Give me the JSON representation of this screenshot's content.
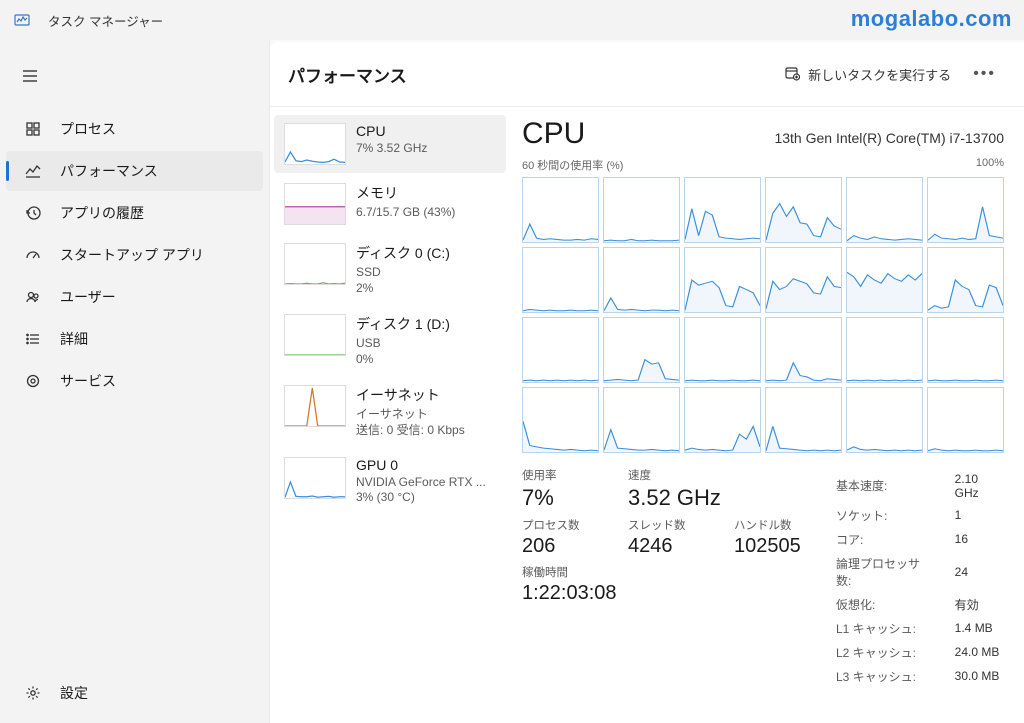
{
  "app": {
    "title": "タスク マネージャー",
    "watermark": "mogalabo.com"
  },
  "nav": {
    "items": [
      {
        "id": "processes",
        "label": "プロセス"
      },
      {
        "id": "performance",
        "label": "パフォーマンス"
      },
      {
        "id": "history",
        "label": "アプリの履歴"
      },
      {
        "id": "startup",
        "label": "スタートアップ アプリ"
      },
      {
        "id": "users",
        "label": "ユーザー"
      },
      {
        "id": "details",
        "label": "詳細"
      },
      {
        "id": "services",
        "label": "サービス"
      }
    ],
    "selected": "performance",
    "settings_label": "設定"
  },
  "header": {
    "page_title": "パフォーマンス",
    "new_task_label": "新しいタスクを実行する"
  },
  "resources": {
    "selected": 0,
    "items": [
      {
        "name": "CPU",
        "sub": "7%  3.52 GHz",
        "color": "#3a8fd9",
        "spark": [
          5,
          30,
          8,
          6,
          10,
          7,
          5,
          4,
          6,
          12,
          5,
          4
        ]
      },
      {
        "name": "メモリ",
        "sub": "6.7/15.7 GB (43%)",
        "color": "#b44ca0",
        "spark": [
          43,
          43,
          43,
          43,
          43,
          43,
          43,
          43,
          43,
          43,
          43,
          43
        ],
        "fill": true
      },
      {
        "name": "ディスク 0 (C:)",
        "sub": "SSD\n2%",
        "color": "#6bb35f",
        "spark": [
          0,
          1,
          0,
          0,
          2,
          0,
          0,
          3,
          0,
          1,
          0,
          2
        ]
      },
      {
        "name": "ディスク 1 (D:)",
        "sub": "USB\n0%",
        "color": "#6bb35f",
        "spark": [
          0,
          0,
          0,
          0,
          0,
          0,
          0,
          0,
          0,
          0,
          0,
          0
        ]
      },
      {
        "name": "イーサネット",
        "sub": "イーサネット\n送信: 0  受信: 0 Kbps",
        "color": "#d07a2a",
        "spark": [
          0,
          0,
          0,
          0,
          0,
          95,
          0,
          0,
          0,
          0,
          0,
          0
        ]
      },
      {
        "name": "GPU 0",
        "sub": "NVIDIA GeForce RTX ...\n3%  (30 °C)",
        "color": "#3a8fd9",
        "spark": [
          2,
          40,
          4,
          3,
          3,
          5,
          2,
          3,
          4,
          2,
          3,
          3
        ]
      }
    ]
  },
  "detail": {
    "title": "CPU",
    "cpu_name": "13th Gen Intel(R) Core(TM) i7-13700",
    "chart_left_label": "60 秒間の使用率 (%)",
    "chart_right_label": "100%",
    "core_color": "#3a8fd9",
    "cores": [
      [
        3,
        28,
        6,
        4,
        5,
        4,
        3,
        3,
        4,
        3,
        5,
        4
      ],
      [
        2,
        3,
        2,
        2,
        4,
        2,
        2,
        3,
        2,
        2,
        2,
        3
      ],
      [
        4,
        52,
        10,
        48,
        42,
        8,
        6,
        5,
        4,
        5,
        6,
        5
      ],
      [
        3,
        45,
        60,
        40,
        55,
        30,
        28,
        10,
        8,
        38,
        25,
        20
      ],
      [
        2,
        10,
        6,
        4,
        8,
        5,
        4,
        3,
        4,
        5,
        4,
        3
      ],
      [
        3,
        12,
        6,
        5,
        4,
        6,
        4,
        5,
        55,
        10,
        8,
        6
      ],
      [
        2,
        4,
        3,
        2,
        3,
        2,
        2,
        3,
        2,
        2,
        3,
        2
      ],
      [
        2,
        22,
        4,
        3,
        4,
        3,
        2,
        3,
        3,
        2,
        3,
        2
      ],
      [
        3,
        50,
        42,
        45,
        48,
        38,
        10,
        8,
        40,
        35,
        30,
        10
      ],
      [
        5,
        48,
        35,
        40,
        52,
        48,
        44,
        30,
        28,
        55,
        40,
        38
      ],
      [
        62,
        55,
        40,
        58,
        50,
        45,
        60,
        52,
        48,
        58,
        50,
        60
      ],
      [
        3,
        10,
        6,
        8,
        50,
        40,
        35,
        10,
        8,
        42,
        38,
        10
      ],
      [
        2,
        3,
        2,
        3,
        2,
        3,
        2,
        3,
        2,
        3,
        2,
        3
      ],
      [
        2,
        3,
        4,
        3,
        2,
        3,
        35,
        28,
        30,
        5,
        4,
        3
      ],
      [
        2,
        3,
        2,
        2,
        3,
        2,
        2,
        3,
        2,
        2,
        3,
        2
      ],
      [
        2,
        3,
        2,
        3,
        30,
        10,
        8,
        3,
        2,
        5,
        4,
        3
      ],
      [
        2,
        3,
        2,
        3,
        2,
        3,
        2,
        3,
        2,
        3,
        2,
        3
      ],
      [
        2,
        3,
        2,
        2,
        3,
        2,
        2,
        3,
        2,
        2,
        3,
        2
      ],
      [
        48,
        10,
        8,
        6,
        5,
        4,
        3,
        4,
        3,
        2,
        3,
        2
      ],
      [
        3,
        35,
        6,
        5,
        4,
        3,
        3,
        4,
        3,
        2,
        3,
        2
      ],
      [
        3,
        6,
        4,
        3,
        4,
        3,
        2,
        3,
        28,
        20,
        40,
        8
      ],
      [
        2,
        40,
        6,
        5,
        4,
        3,
        2,
        3,
        2,
        3,
        2,
        3
      ],
      [
        3,
        8,
        4,
        3,
        4,
        3,
        2,
        3,
        2,
        3,
        2,
        3
      ],
      [
        2,
        5,
        3,
        2,
        3,
        2,
        2,
        3,
        2,
        2,
        3,
        2
      ]
    ],
    "stats": {
      "usage_label": "使用率",
      "usage_value": "7%",
      "speed_label": "速度",
      "speed_value": "3.52 GHz",
      "proc_label": "プロセス数",
      "proc_value": "206",
      "thread_label": "スレッド数",
      "thread_value": "4246",
      "handle_label": "ハンドル数",
      "handle_value": "102505",
      "uptime_label": "稼働時間",
      "uptime_value": "1:22:03:08"
    },
    "specs": [
      {
        "k": "基本速度:",
        "v": "2.10 GHz"
      },
      {
        "k": "ソケット:",
        "v": "1"
      },
      {
        "k": "コア:",
        "v": "16"
      },
      {
        "k": "論理プロセッサ数:",
        "v": "24"
      },
      {
        "k": "仮想化:",
        "v": "有効"
      },
      {
        "k": "L1 キャッシュ:",
        "v": "1.4 MB"
      },
      {
        "k": "L2 キャッシュ:",
        "v": "24.0 MB"
      },
      {
        "k": "L3 キャッシュ:",
        "v": "30.0 MB"
      }
    ]
  }
}
